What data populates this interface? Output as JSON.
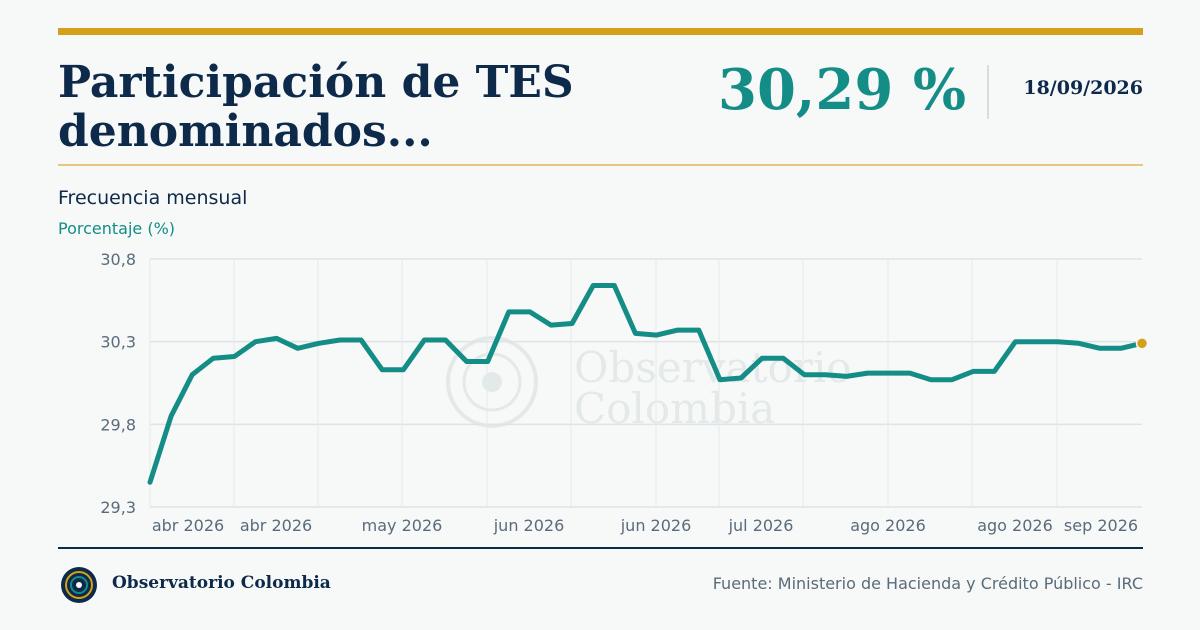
{
  "header": {
    "title": "Participación de TES denominados...",
    "value": "30,29 %",
    "date": "18/09/2026"
  },
  "subtitle": "Frecuencia mensual",
  "brand": {
    "name": "Observatorio Colombia"
  },
  "watermark": {
    "line1": "Observatorio",
    "line2": "Colombia"
  },
  "source": "Fuente: Ministerio de Hacienda y Crédito Público - IRC",
  "colors": {
    "accent": "#d4a01c",
    "line": "#138d86",
    "title": "#0d2a4a",
    "marker": "#d4a01c"
  },
  "chart_data": {
    "type": "line",
    "ylabel": "Porcentaje (%)",
    "ylim": [
      29.3,
      30.8
    ],
    "yticks": [
      29.3,
      29.8,
      30.3,
      30.8
    ],
    "ytick_labels": [
      "29,3",
      "29,8",
      "30,3",
      "30,8"
    ],
    "xtick_labels": [
      "abr 2026",
      "abr 2026",
      "may 2026",
      "jun 2026",
      "jun 2026",
      "jul 2026",
      "ago 2026",
      "ago 2026",
      "sep 2026"
    ],
    "grid": true,
    "series": [
      {
        "values": [
          29.45,
          29.85,
          30.1,
          30.2,
          30.21,
          30.3,
          30.32,
          30.26,
          30.29,
          30.31,
          30.31,
          30.13,
          30.13,
          30.31,
          30.31,
          30.18,
          30.18,
          30.48,
          30.48,
          30.4,
          30.41,
          30.64,
          30.64,
          30.35,
          30.34,
          30.37,
          30.37,
          30.07,
          30.08,
          30.2,
          30.2,
          30.1,
          30.1,
          30.09,
          30.11,
          30.11,
          30.11,
          30.07,
          30.07,
          30.12,
          30.12,
          30.3,
          30.3,
          30.3,
          30.29,
          30.26,
          30.26,
          30.29
        ]
      }
    ],
    "last_point_highlight": true
  }
}
